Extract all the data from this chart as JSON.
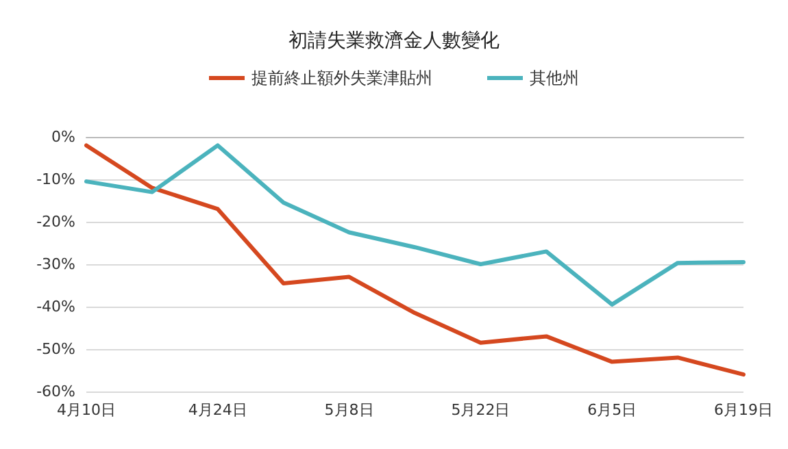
{
  "chart_data": {
    "type": "line",
    "title": "初請失業救濟金人數變化",
    "categories": [
      "4月10日",
      null,
      "4月24日",
      null,
      "5月8日",
      null,
      "5月22日",
      null,
      "6月5日",
      null,
      "6月19日"
    ],
    "series": [
      {
        "name": "提前終止額外失業津貼州",
        "color": "#d5481f",
        "values": [
          -2,
          -12,
          -17,
          -34.5,
          -33,
          -41.5,
          -48.5,
          -47,
          -53,
          -52,
          -56
        ]
      },
      {
        "name": "其他州",
        "color": "#4bb3bd",
        "values": [
          -10.5,
          -13,
          -2,
          -15.5,
          -22.5,
          -26,
          -30,
          -27,
          -39.5,
          -29.7,
          -29.5
        ]
      }
    ],
    "ylim": [
      -60,
      0
    ],
    "yticks": [
      {
        "value": -60,
        "label": "-60%"
      },
      {
        "value": -50,
        "label": "-50%"
      },
      {
        "value": -40,
        "label": "-40%"
      },
      {
        "value": -30,
        "label": "-30%"
      },
      {
        "value": -20,
        "label": "-20%"
      },
      {
        "value": -10,
        "label": "-10%"
      },
      {
        "value": 0,
        "label": "0%"
      }
    ],
    "grid": "y",
    "legend": "top",
    "marker": "none",
    "line_style": "solid"
  }
}
